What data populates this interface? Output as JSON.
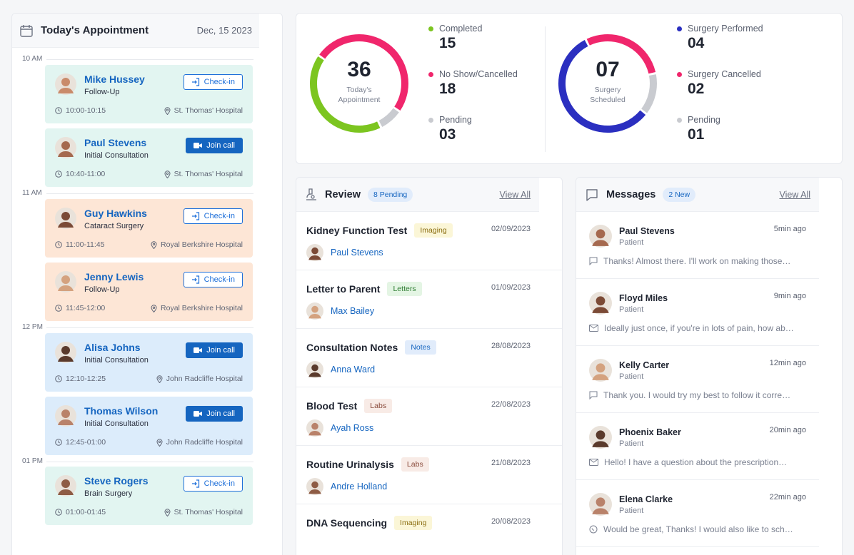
{
  "appointments": {
    "title": "Today's Appointment",
    "date": "Dec, 15 2023",
    "time_slots": [
      "10 AM",
      "11 AM",
      "12 PM",
      "01 PM"
    ],
    "cards": [
      {
        "name": "Mike Hussey",
        "type": "Follow-Up",
        "time": "10:00-10:15",
        "location": "St. Thomas' Hospital",
        "action": "Check-in",
        "color": "green"
      },
      {
        "name": "Paul Stevens",
        "type": "Initial Consultation",
        "time": "10:40-11:00",
        "location": "St. Thomas' Hospital",
        "action": "Join call",
        "color": "green"
      },
      {
        "name": "Guy Hawkins",
        "type": "Cataract Surgery",
        "time": "11:00-11:45",
        "location": "Royal Berkshire Hospital",
        "action": "Check-in",
        "color": "orange"
      },
      {
        "name": "Jenny Lewis",
        "type": "Follow-Up",
        "time": "11:45-12:00",
        "location": "Royal Berkshire Hospital",
        "action": "Check-in",
        "color": "orange"
      },
      {
        "name": "Alisa Johns",
        "type": "Initial Consultation",
        "time": "12:10-12:25",
        "location": "John Radcliffe Hospital",
        "action": "Join call",
        "color": "blue"
      },
      {
        "name": "Thomas Wilson",
        "type": "Initial Consultation",
        "time": "12:45-01:00",
        "location": "John Radcliffe Hospital",
        "action": "Join call",
        "color": "blue"
      },
      {
        "name": "Steve Rogers",
        "type": "Brain Surgery",
        "time": "01:00-01:45",
        "location": "St. Thomas' Hospital",
        "action": "Check-in",
        "color": "green"
      }
    ]
  },
  "stats": {
    "appointments": {
      "total": "36",
      "label_line1": "Today's",
      "label_line2": "Appointment",
      "items": [
        {
          "label": "Completed",
          "value": "15",
          "color": "#7cc520",
          "fraction": 0.42
        },
        {
          "label": "No Show/Cancelled",
          "value": "18",
          "color": "#f0266c",
          "fraction": 0.5
        },
        {
          "label": "Pending",
          "value": "03",
          "color": "#c9cbd0",
          "fraction": 0.08
        }
      ]
    },
    "surgery": {
      "total": "07",
      "label_line1": "Surgery",
      "label_line2": "Scheduled",
      "items": [
        {
          "label": "Surgery Performed",
          "value": "04",
          "color": "#2b2fc0",
          "fraction": 0.57
        },
        {
          "label": "Surgery Cancelled",
          "value": "02",
          "color": "#f0266c",
          "fraction": 0.29
        },
        {
          "label": "Pending",
          "value": "01",
          "color": "#c9cbd0",
          "fraction": 0.14
        }
      ]
    }
  },
  "review": {
    "title": "Review",
    "badge": "8 Pending",
    "view_all": "View All",
    "items": [
      {
        "title": "Kidney Function Test",
        "tag": "Imaging",
        "tag_type": "imaging",
        "date": "02/09/2023",
        "patient": "Paul Stevens"
      },
      {
        "title": "Letter to Parent",
        "tag": "Letters",
        "tag_type": "letters",
        "date": "01/09/2023",
        "patient": "Max Bailey"
      },
      {
        "title": "Consultation Notes",
        "tag": "Notes",
        "tag_type": "notes",
        "date": "28/08/2023",
        "patient": "Anna Ward"
      },
      {
        "title": "Blood Test",
        "tag": "Labs",
        "tag_type": "labs",
        "date": "22/08/2023",
        "patient": "Ayah Ross"
      },
      {
        "title": "Routine Urinalysis",
        "tag": "Labs",
        "tag_type": "labs",
        "date": "21/08/2023",
        "patient": "Andre Holland"
      },
      {
        "title": "DNA Sequencing",
        "tag": "Imaging",
        "tag_type": "imaging",
        "date": "20/08/2023",
        "patient": ""
      }
    ]
  },
  "messages": {
    "title": "Messages",
    "badge": "2 New",
    "view_all": "View All",
    "items": [
      {
        "name": "Paul Stevens",
        "role": "Patient",
        "time": "5min ago",
        "text": "Thanks! Almost there. I'll work on making those…",
        "channel": "chat"
      },
      {
        "name": "Floyd Miles",
        "role": "Patient",
        "time": "9min ago",
        "text": "Ideally just once, if you're in lots of pain, how ab…",
        "channel": "email"
      },
      {
        "name": "Kelly Carter",
        "role": "Patient",
        "time": "12min ago",
        "text": "Thank you. I would try my best to follow it corre…",
        "channel": "chat"
      },
      {
        "name": "Phoenix Baker",
        "role": "Patient",
        "time": "20min ago",
        "text": "Hello! I have a question about the prescription…",
        "channel": "email"
      },
      {
        "name": "Elena Clarke",
        "role": "Patient",
        "time": "22min ago",
        "text": "Would be great, Thanks! I would also like to sch…",
        "channel": "whatsapp"
      }
    ]
  }
}
